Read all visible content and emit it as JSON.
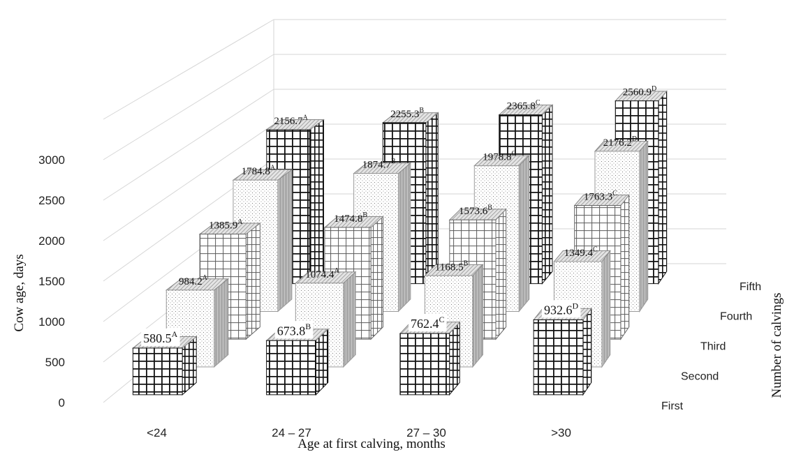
{
  "chart_data": {
    "type": "bar",
    "title": "",
    "xlabel": "Age at first calving, months",
    "ylabel": "Cow age, days",
    "zlabel": "Number of calvings",
    "categories": [
      "<24",
      "24 – 27",
      "27 – 30",
      ">30"
    ],
    "ylim": [
      0,
      3000
    ],
    "yticks": [
      "0",
      "500",
      "1000",
      "1500",
      "2000",
      "2500",
      "3000"
    ],
    "grid": true,
    "series": [
      {
        "name": "First",
        "values": [
          580.5,
          673.8,
          762.4,
          932.6
        ],
        "labels": [
          "580.5",
          "673.8",
          "762.4",
          "932.6"
        ],
        "letters": [
          "A",
          "B",
          "C",
          "D"
        ],
        "pattern": "bold-grid"
      },
      {
        "name": "Second",
        "values": [
          984.2,
          1074.4,
          1168.5,
          1349.4
        ],
        "labels": [
          "984.2",
          "1074.4",
          "1168.5",
          "1349.4"
        ],
        "letters": [
          "A",
          "A",
          "B",
          "C"
        ],
        "pattern": "dots"
      },
      {
        "name": "Third",
        "values": [
          1385.9,
          1474.8,
          1573.6,
          1763.3
        ],
        "labels": [
          "1385.9",
          "1474.8",
          "1573.6",
          "1763.3"
        ],
        "letters": [
          "A",
          "B",
          "B",
          "C"
        ],
        "pattern": "grid"
      },
      {
        "name": "Fourth",
        "values": [
          1784.8,
          1874.7,
          1978.8,
          2176.2
        ],
        "labels": [
          "1784.8",
          "1874.7",
          "1978.8",
          "2176.2"
        ],
        "letters": [
          "A",
          "B",
          "C",
          "D"
        ],
        "pattern": "dots"
      },
      {
        "name": "Fifth",
        "values": [
          2156.7,
          2255.3,
          2365.8,
          2560.9
        ],
        "labels": [
          "2156.7",
          "2255.3",
          "2365.8",
          "2560.9"
        ],
        "letters": [
          "A",
          "B",
          "C",
          "D"
        ],
        "pattern": "bold-grid"
      }
    ]
  }
}
